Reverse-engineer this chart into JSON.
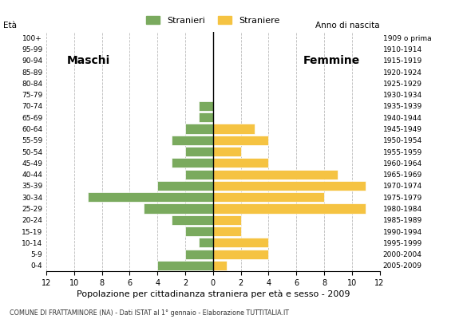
{
  "age_groups": [
    "0-4",
    "5-9",
    "10-14",
    "15-19",
    "20-24",
    "25-29",
    "30-34",
    "35-39",
    "40-44",
    "45-49",
    "50-54",
    "55-59",
    "60-64",
    "65-69",
    "70-74",
    "75-79",
    "80-84",
    "85-89",
    "90-94",
    "95-99",
    "100+"
  ],
  "birth_years": [
    "2005-2009",
    "2000-2004",
    "1995-1999",
    "1990-1994",
    "1985-1989",
    "1980-1984",
    "1975-1979",
    "1970-1974",
    "1965-1969",
    "1960-1964",
    "1955-1959",
    "1950-1954",
    "1945-1949",
    "1940-1944",
    "1935-1939",
    "1930-1934",
    "1925-1929",
    "1920-1924",
    "1915-1919",
    "1910-1914",
    "1909 o prima"
  ],
  "males": [
    4,
    2,
    1,
    2,
    3,
    5,
    9,
    4,
    2,
    3,
    2,
    3,
    2,
    1,
    1,
    0,
    0,
    0,
    0,
    0,
    0
  ],
  "females": [
    1,
    4,
    4,
    2,
    2,
    11,
    8,
    11,
    9,
    4,
    2,
    4,
    3,
    0,
    0,
    0,
    0,
    0,
    0,
    0,
    0
  ],
  "male_color": "#7aaa5e",
  "female_color": "#f5c342",
  "bar_edge_color": "white",
  "title": "Popolazione per cittadinanza straniera per età e sesso - 2009",
  "subtitle": "COMUNE DI FRATTAMINORE (NA) - Dati ISTAT al 1° gennaio - Elaborazione TUTTITALIA.IT",
  "label_maschi": "Maschi",
  "label_femmine": "Femmine",
  "ylabel_left": "Età",
  "ylabel_right": "Anno di nascita",
  "legend_male": "Stranieri",
  "legend_female": "Straniere",
  "xlim": 12,
  "background_color": "#ffffff",
  "grid_color": "#bbbbbb"
}
